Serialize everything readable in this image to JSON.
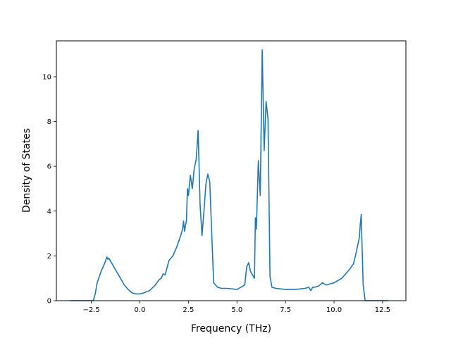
{
  "chart_data": {
    "type": "line",
    "title": "",
    "xlabel": "Frequency (THz)",
    "ylabel": "Density of States",
    "xlim": [
      -4.3,
      13.7
    ],
    "ylim": [
      0,
      11.6
    ],
    "xticks": [
      -2.5,
      0.0,
      2.5,
      5.0,
      7.5,
      10.0,
      12.5
    ],
    "xtick_labels": [
      "−2.5",
      "0.0",
      "2.5",
      "5.0",
      "7.5",
      "10.0",
      "12.5"
    ],
    "yticks": [
      0,
      2,
      4,
      6,
      8,
      10
    ],
    "ytick_labels": [
      "0",
      "2",
      "4",
      "6",
      "8",
      "10"
    ],
    "grid": false,
    "legend": null,
    "line_color": "#1f77b4",
    "series": [
      {
        "x": [
          -3.6,
          -3.0,
          -2.4,
          -2.3,
          -2.2,
          -2.0,
          -1.8,
          -1.7,
          -1.65,
          -1.6,
          -1.5,
          -1.4,
          -1.2,
          -1.0,
          -0.8,
          -0.6,
          -0.4,
          -0.2,
          0.0,
          0.2,
          0.5,
          0.8,
          1.0,
          1.1,
          1.2,
          1.3,
          1.5,
          1.7,
          1.9,
          2.1,
          2.2,
          2.25,
          2.3,
          2.4,
          2.45,
          2.5,
          2.6,
          2.7,
          2.8,
          2.9,
          3.0,
          3.1,
          3.2,
          3.3,
          3.4,
          3.5,
          3.6,
          3.7,
          3.8,
          3.9,
          4.0,
          4.2,
          4.5,
          5.0,
          5.2,
          5.4,
          5.5,
          5.6,
          5.7,
          5.8,
          5.9,
          5.95,
          6.0,
          6.1,
          6.2,
          6.3,
          6.35,
          6.4,
          6.5,
          6.6,
          6.7,
          6.8,
          7.0,
          7.5,
          8.0,
          8.5,
          8.7,
          8.8,
          8.9,
          9.0,
          9.2,
          9.4,
          9.6,
          9.8,
          10.0,
          10.2,
          10.4,
          10.6,
          10.8,
          11.0,
          11.1,
          11.2,
          11.3,
          11.35,
          11.4,
          11.45,
          11.5,
          11.6,
          12.0,
          12.5,
          12.8
        ],
        "y": [
          0,
          0,
          0,
          0.3,
          0.8,
          1.3,
          1.7,
          1.95,
          1.85,
          1.9,
          1.75,
          1.6,
          1.3,
          1.0,
          0.7,
          0.5,
          0.35,
          0.3,
          0.3,
          0.35,
          0.45,
          0.7,
          0.95,
          1.0,
          1.2,
          1.15,
          1.8,
          2.0,
          2.4,
          2.9,
          3.2,
          3.55,
          3.1,
          3.6,
          5.0,
          4.7,
          5.6,
          5.0,
          5.9,
          6.3,
          7.6,
          4.3,
          2.9,
          4.0,
          5.2,
          5.65,
          5.3,
          3.0,
          0.8,
          0.7,
          0.6,
          0.55,
          0.55,
          0.5,
          0.6,
          0.7,
          1.5,
          1.7,
          1.3,
          1.15,
          1.0,
          3.7,
          3.2,
          6.25,
          4.7,
          11.2,
          9.0,
          6.7,
          8.9,
          8.1,
          1.1,
          0.6,
          0.55,
          0.5,
          0.5,
          0.55,
          0.6,
          0.45,
          0.6,
          0.6,
          0.65,
          0.8,
          0.7,
          0.75,
          0.8,
          0.9,
          1.0,
          1.2,
          1.4,
          1.65,
          2.0,
          2.4,
          2.8,
          3.4,
          3.85,
          2.2,
          0.7,
          0,
          0,
          0,
          0
        ]
      }
    ]
  }
}
